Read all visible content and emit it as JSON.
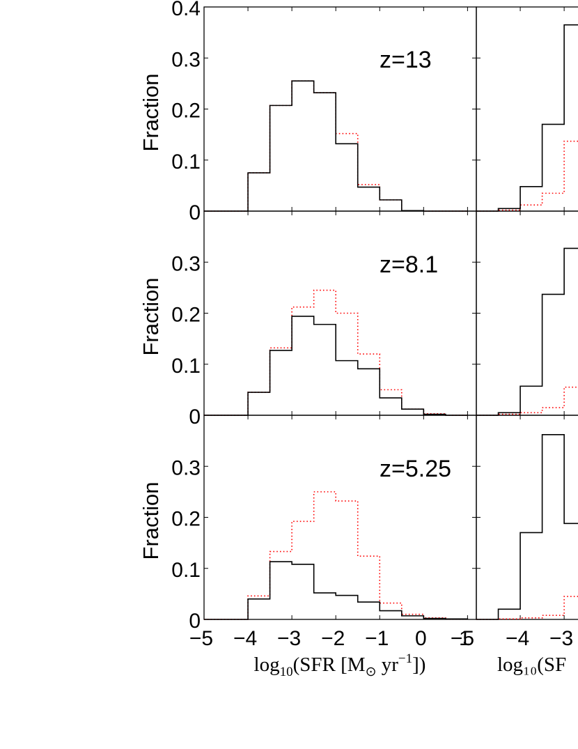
{
  "figure": {
    "ylabel": "Fraction",
    "xlabel": {
      "prefix": "log",
      "sub": "10",
      "body": "(SFR [M",
      "sun": "⊙",
      "unit": " yr",
      "exp": "−1",
      "close": "])"
    },
    "xlabel_right_visible": "log₁₀(SF",
    "x_ticks": [
      "−5",
      "−4",
      "−3",
      "−2",
      "−1",
      "0",
      "1"
    ],
    "x_ticks_right_visible": [
      "−5",
      "−4",
      "−3"
    ],
    "y_ticks_top": [
      "0",
      "0.1",
      "0.2",
      "0.3",
      "0.4"
    ],
    "y_ticks_lower": [
      "0",
      "0.1",
      "0.2",
      "0.3"
    ],
    "colors": {
      "solid": "#000000",
      "dotted": "#ff0000"
    }
  },
  "chart_data": [
    {
      "type": "histogram",
      "panel": "left-top",
      "annotation": "z=13",
      "xlim": [
        -5,
        1.2
      ],
      "ylim": [
        0,
        0.4
      ],
      "bin_edges": [
        -5,
        -4.5,
        -4,
        -3.5,
        -3,
        -2.5,
        -2,
        -1.5,
        -1,
        -0.5,
        0,
        0.5,
        1
      ],
      "series": [
        {
          "style": "solid",
          "values": [
            0,
            0,
            0.075,
            0.207,
            0.255,
            0.232,
            0.132,
            0.047,
            0.022,
            0.001,
            0,
            0
          ]
        },
        {
          "style": "dotted",
          "values": [
            0,
            0,
            0.075,
            0.207,
            0.255,
            0.232,
            0.152,
            0.052,
            0.022,
            0.001,
            0,
            0
          ]
        }
      ]
    },
    {
      "type": "histogram",
      "panel": "left-middle",
      "annotation": "z=8.1",
      "xlim": [
        -5,
        1.2
      ],
      "ylim": [
        0,
        0.4
      ],
      "bin_edges": [
        -5,
        -4.5,
        -4,
        -3.5,
        -3,
        -2.5,
        -2,
        -1.5,
        -1,
        -0.5,
        0,
        0.5,
        1
      ],
      "series": [
        {
          "style": "solid",
          "values": [
            0,
            0,
            0.045,
            0.127,
            0.194,
            0.178,
            0.107,
            0.091,
            0.034,
            0.012,
            0.002,
            0
          ]
        },
        {
          "style": "dotted",
          "values": [
            0,
            0,
            0.045,
            0.132,
            0.212,
            0.245,
            0.2,
            0.12,
            0.05,
            0.012,
            0.003,
            0
          ]
        }
      ]
    },
    {
      "type": "histogram",
      "panel": "left-bottom",
      "annotation": "z=5.25",
      "xlim": [
        -5,
        1.2
      ],
      "ylim": [
        0,
        0.4
      ],
      "bin_edges": [
        -5,
        -4.5,
        -4,
        -3.5,
        -3,
        -2.5,
        -2,
        -1.5,
        -1,
        -0.5,
        0,
        0.5,
        1
      ],
      "series": [
        {
          "style": "solid",
          "values": [
            0,
            0,
            0.04,
            0.113,
            0.108,
            0.052,
            0.047,
            0.034,
            0.017,
            0.007,
            0.002,
            0.001
          ]
        },
        {
          "style": "dotted",
          "values": [
            0,
            0,
            0.046,
            0.133,
            0.192,
            0.25,
            0.232,
            0.124,
            0.032,
            0.01,
            0.003,
            0.001
          ]
        }
      ]
    },
    {
      "type": "histogram",
      "panel": "right-top (cropped)",
      "xlim": [
        -5,
        1.2
      ],
      "ylim": [
        0,
        0.4
      ],
      "bin_edges": [
        -5,
        -4.5,
        -4,
        -3.5,
        -3,
        -2.5
      ],
      "series": [
        {
          "style": "solid",
          "values": [
            0,
            0.005,
            0.048,
            0.17,
            0.365
          ]
        },
        {
          "style": "dotted",
          "values": [
            0,
            0.002,
            0.012,
            0.035,
            0.137
          ]
        }
      ]
    },
    {
      "type": "histogram",
      "panel": "right-middle (cropped)",
      "xlim": [
        -5,
        1.2
      ],
      "ylim": [
        0,
        0.4
      ],
      "bin_edges": [
        -5,
        -4.5,
        -4,
        -3.5,
        -3,
        -2.5
      ],
      "series": [
        {
          "style": "solid",
          "values": [
            0,
            0.005,
            0.057,
            0.237,
            0.327
          ]
        },
        {
          "style": "dotted",
          "values": [
            0,
            0.002,
            0.005,
            0.015,
            0.055
          ]
        }
      ]
    },
    {
      "type": "histogram",
      "panel": "right-bottom (cropped)",
      "xlim": [
        -5,
        1.2
      ],
      "ylim": [
        0,
        0.4
      ],
      "bin_edges": [
        -5,
        -4.5,
        -4,
        -3.5,
        -3,
        -2.5
      ],
      "series": [
        {
          "style": "solid",
          "values": [
            0,
            0.02,
            0.17,
            0.362,
            0.188
          ]
        },
        {
          "style": "dotted",
          "values": [
            0,
            0.001,
            0.003,
            0.008,
            0.045
          ]
        }
      ]
    }
  ]
}
